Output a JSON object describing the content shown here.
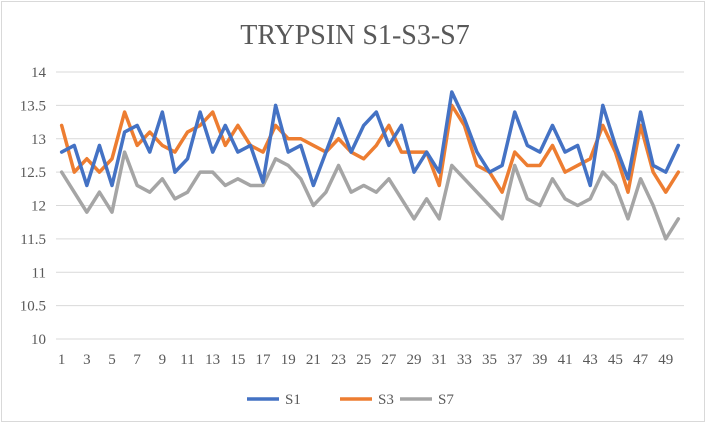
{
  "chart_data": {
    "type": "line",
    "title": "TRYPSIN S1-S3-S7",
    "xlabel": "",
    "ylabel": "",
    "ylim": [
      10,
      14
    ],
    "yticks": [
      "10",
      "10.5",
      "11",
      "11.5",
      "12",
      "12.5",
      "13",
      "13.5",
      "14"
    ],
    "x": [
      1,
      2,
      3,
      4,
      5,
      6,
      7,
      8,
      9,
      10,
      11,
      12,
      13,
      14,
      15,
      16,
      17,
      18,
      19,
      20,
      21,
      22,
      23,
      24,
      25,
      26,
      27,
      28,
      29,
      30,
      31,
      32,
      33,
      34,
      35,
      36,
      37,
      38,
      39,
      40,
      41,
      42,
      43,
      44,
      45,
      46,
      47,
      48,
      49,
      50
    ],
    "xtick_labels": [
      "1",
      "3",
      "5",
      "7",
      "9",
      "11",
      "13",
      "15",
      "17",
      "19",
      "21",
      "23",
      "25",
      "27",
      "29",
      "31",
      "33",
      "35",
      "37",
      "39",
      "41",
      "43",
      "45",
      "47",
      "49"
    ],
    "grid": "horizontal",
    "legend_position": "bottom",
    "series": [
      {
        "name": "S1",
        "color": "#4472c4",
        "values": [
          12.8,
          12.9,
          12.3,
          12.9,
          12.3,
          13.1,
          13.2,
          12.8,
          13.4,
          12.5,
          12.7,
          13.4,
          12.8,
          13.2,
          12.8,
          12.9,
          12.35,
          13.5,
          12.8,
          12.9,
          12.3,
          12.8,
          13.3,
          12.8,
          13.2,
          13.4,
          12.9,
          13.2,
          12.5,
          12.8,
          12.5,
          13.7,
          13.3,
          12.8,
          12.5,
          12.6,
          13.4,
          12.9,
          12.8,
          13.2,
          12.8,
          12.9,
          12.3,
          13.5,
          12.9,
          12.4,
          13.4,
          12.6,
          12.5,
          12.9
        ]
      },
      {
        "name": "S3",
        "color": "#ed7d31",
        "values": [
          13.2,
          12.5,
          12.7,
          12.5,
          12.7,
          13.4,
          12.9,
          13.1,
          12.9,
          12.8,
          13.1,
          13.2,
          13.4,
          12.9,
          13.2,
          12.9,
          12.8,
          13.2,
          13.0,
          13.0,
          12.9,
          12.8,
          13.0,
          12.8,
          12.7,
          12.9,
          13.2,
          12.8,
          12.8,
          12.8,
          12.3,
          13.5,
          13.2,
          12.6,
          12.5,
          12.2,
          12.8,
          12.6,
          12.6,
          12.9,
          12.5,
          12.6,
          12.7,
          13.2,
          12.8,
          12.2,
          13.2,
          12.5,
          12.2,
          12.5
        ]
      },
      {
        "name": "S7",
        "color": "#a5a5a5",
        "values": [
          12.5,
          12.2,
          11.9,
          12.2,
          11.9,
          12.8,
          12.3,
          12.2,
          12.4,
          12.1,
          12.2,
          12.5,
          12.5,
          12.3,
          12.4,
          12.3,
          12.3,
          12.7,
          12.6,
          12.4,
          12.0,
          12.2,
          12.6,
          12.2,
          12.3,
          12.2,
          12.4,
          12.1,
          11.8,
          12.1,
          11.8,
          12.6,
          12.4,
          12.2,
          12.0,
          11.8,
          12.6,
          12.1,
          12.0,
          12.4,
          12.1,
          12.0,
          12.1,
          12.5,
          12.3,
          11.8,
          12.4,
          12.0,
          11.5,
          11.8
        ]
      }
    ]
  }
}
